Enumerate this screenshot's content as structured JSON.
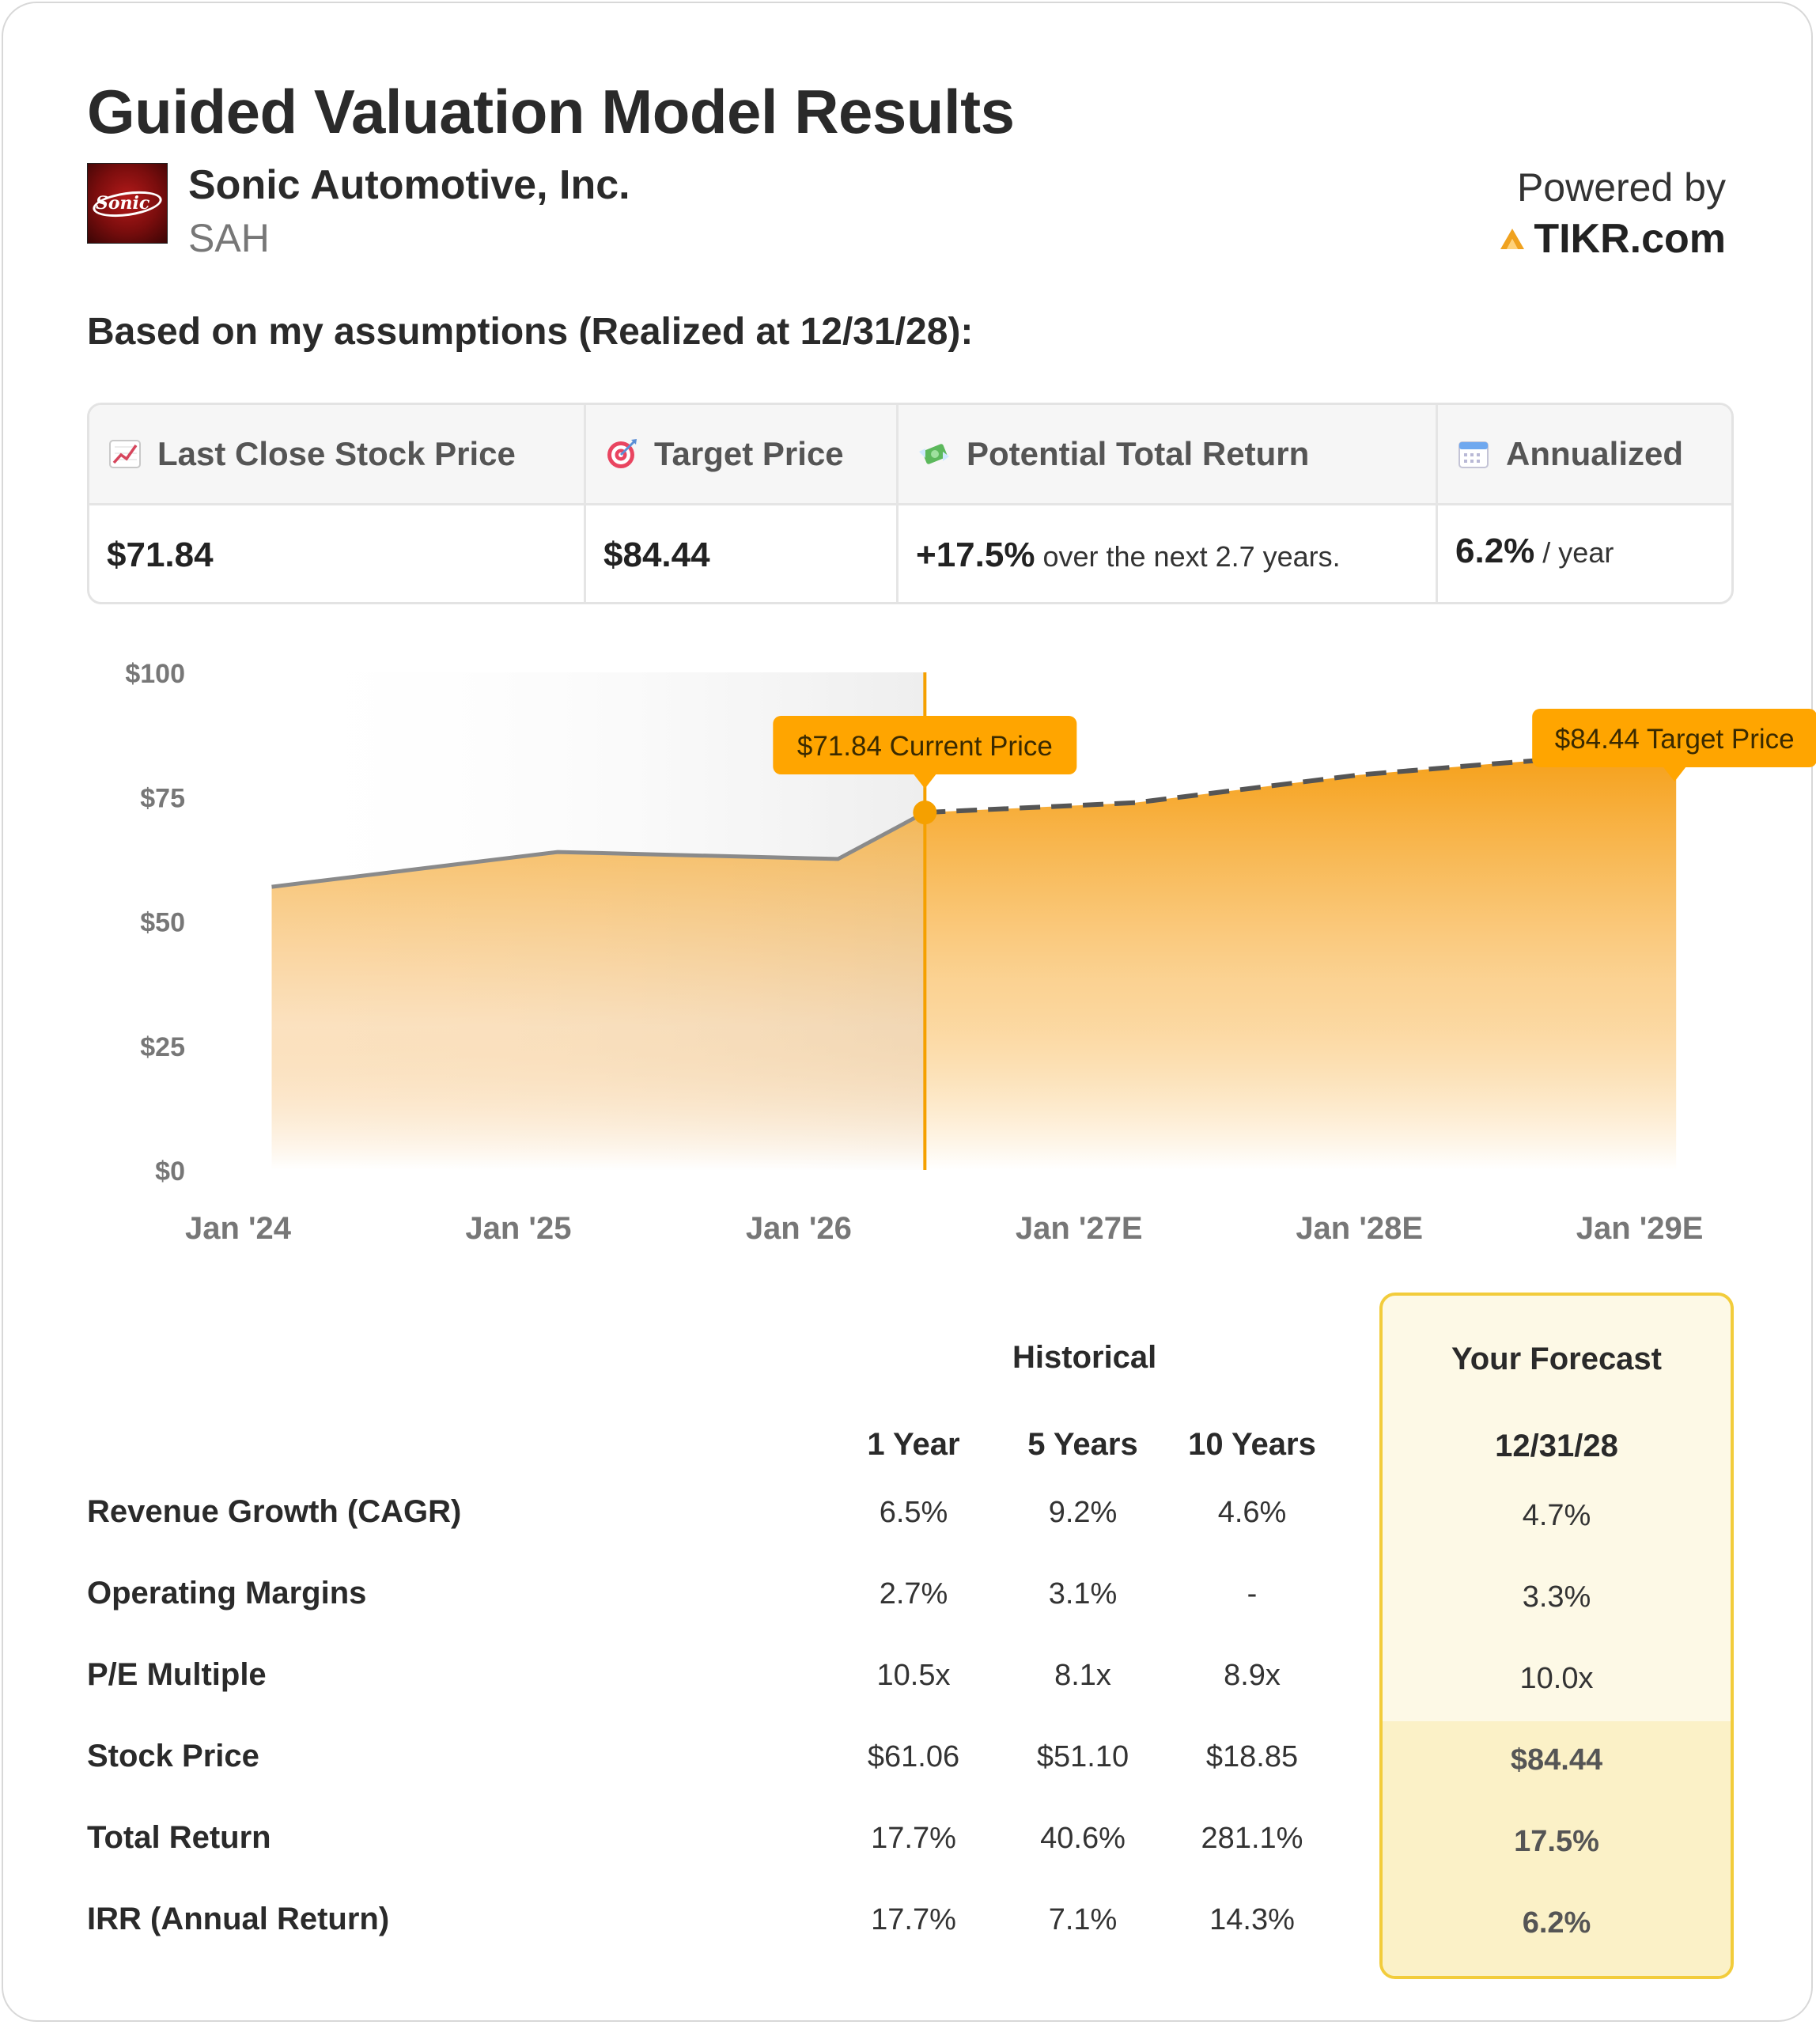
{
  "title": "Guided Valuation Model Results",
  "company": {
    "name": "Sonic Automotive, Inc.",
    "ticker": "SAH",
    "logo_text": "Sonic"
  },
  "powered": {
    "label": "Powered by",
    "brand": "TIKR.com"
  },
  "assumptions_text": "Based on my assumptions (Realized at 12/31/28):",
  "summary": {
    "headers": [
      "Last Close Stock Price",
      "Target Price",
      "Potential Total Return",
      "Annualized"
    ],
    "icons": [
      "chart-increasing-icon",
      "target-icon",
      "money-wings-icon",
      "calendar-icon"
    ],
    "last_close": "$71.84",
    "target": "$84.44",
    "total_return": "+17.5%",
    "total_return_note": "over the next 2.7 years.",
    "annualized": "6.2%",
    "annualized_unit": "/ year"
  },
  "chart_data": {
    "type": "area",
    "x_labels": [
      "Jan '24",
      "Jan '25",
      "Jan '26",
      "Jan '27E",
      "Jan '28E",
      "Jan '29E"
    ],
    "y_ticks": [
      "$0",
      "$25",
      "$50",
      "$75",
      "$100"
    ],
    "ylim": [
      0,
      100
    ],
    "historical": [
      {
        "x": 2024.12,
        "y": 56.9
      },
      {
        "x": 2025.14,
        "y": 63.9
      },
      {
        "x": 2026.14,
        "y": 62.5
      },
      {
        "x": 2026.45,
        "y": 71.84
      }
    ],
    "forecast": [
      {
        "x": 2026.45,
        "y": 71.84
      },
      {
        "x": 2027.2,
        "y": 73.8
      },
      {
        "x": 2028.0,
        "y": 79.4
      },
      {
        "x": 2028.45,
        "y": 81.5
      },
      {
        "x": 2029.13,
        "y": 84.44
      }
    ],
    "current_label": "$71.84 Current Price",
    "target_label": "$84.44 Target Price",
    "colors": {
      "accent": "#FFA500",
      "line": "#888888",
      "forecast_dash": "#555555"
    }
  },
  "table": {
    "group_historical": "Historical",
    "group_forecast": "Your Forecast",
    "columns": [
      "1 Year",
      "5 Years",
      "10 Years"
    ],
    "forecast_date": "12/31/28",
    "rows": [
      {
        "label": "Revenue Growth (CAGR)",
        "values": [
          "6.5%",
          "9.2%",
          "4.6%"
        ],
        "forecast": "4.7%"
      },
      {
        "label": "Operating Margins",
        "values": [
          "2.7%",
          "3.1%",
          "-"
        ],
        "forecast": "3.3%"
      },
      {
        "label": "P/E Multiple",
        "values": [
          "10.5x",
          "8.1x",
          "8.9x"
        ],
        "forecast": "10.0x"
      },
      {
        "label": "Stock Price",
        "values": [
          "$61.06",
          "$51.10",
          "$18.85"
        ],
        "forecast": "$84.44"
      },
      {
        "label": "Total Return",
        "values": [
          "17.7%",
          "40.6%",
          "281.1%"
        ],
        "forecast": "17.5%"
      },
      {
        "label": "IRR (Annual Return)",
        "values": [
          "17.7%",
          "7.1%",
          "14.3%"
        ],
        "forecast": "6.2%"
      }
    ]
  }
}
